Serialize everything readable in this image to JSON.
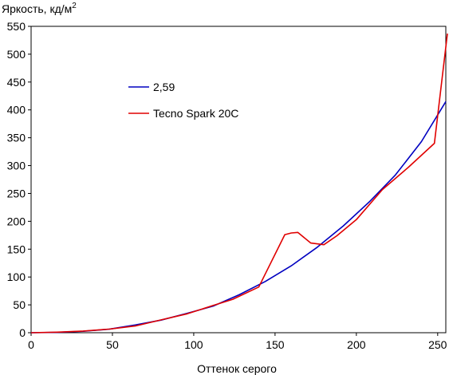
{
  "chart_data": {
    "type": "line",
    "title": "",
    "ylabel": "Яркость, кд/м",
    "ylabel_superscript": "2",
    "xlabel": "Оттенок серого",
    "xlim": [
      0,
      255
    ],
    "ylim": [
      0,
      550
    ],
    "x_ticks": [
      0,
      50,
      100,
      150,
      200,
      250
    ],
    "y_ticks": [
      0,
      50,
      100,
      150,
      200,
      250,
      300,
      350,
      400,
      450,
      500,
      550
    ],
    "grid": false,
    "legend_placement": "upper-left-inside",
    "series": [
      {
        "name": "2,59",
        "color": "#0000c0",
        "x": [
          0,
          16,
          32,
          48,
          64,
          80,
          96,
          112,
          128,
          144,
          160,
          176,
          192,
          208,
          224,
          240,
          255
        ],
        "y": [
          0,
          0.6,
          2.6,
          6.3,
          13.9,
          22.7,
          34.9,
          47.9,
          68.2,
          92.0,
          120.1,
          153.6,
          191.8,
          235.0,
          283.1,
          343.1,
          415
        ]
      },
      {
        "name": "Tecno Spark 20C",
        "color": "#e00000",
        "x": [
          0,
          16,
          32,
          48,
          64,
          80,
          96,
          112,
          124,
          140,
          156,
          160,
          164,
          172,
          180,
          188,
          200,
          216,
          232,
          248,
          256
        ],
        "y": [
          0,
          1,
          3,
          6.5,
          12,
          23,
          34,
          49,
          60,
          82,
          176,
          179,
          180,
          161,
          158,
          174,
          203,
          257,
          297,
          340,
          537
        ]
      }
    ]
  }
}
